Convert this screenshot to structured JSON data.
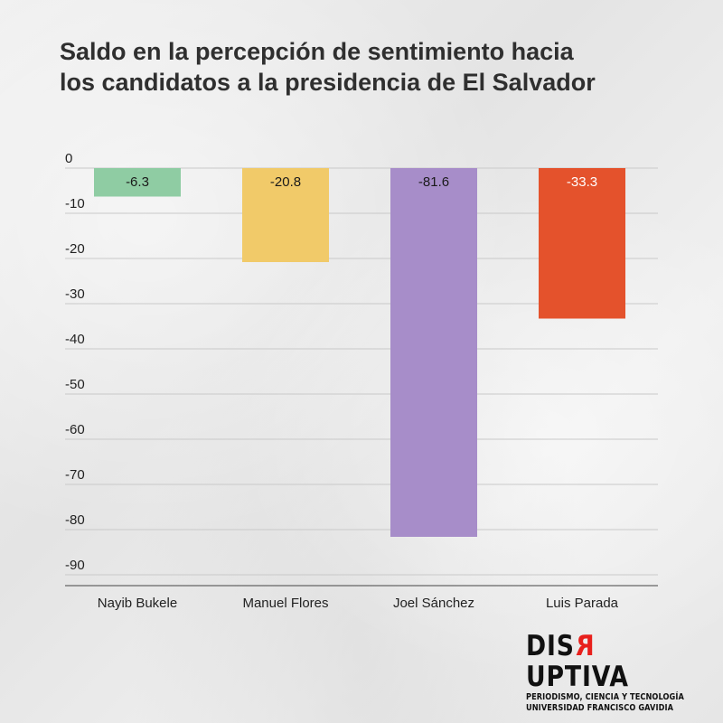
{
  "chart_data": {
    "type": "bar",
    "title_lines": [
      "Saldo en la percepción de sentimiento hacia",
      "los candidatos a la presidencia de El Salvador"
    ],
    "categories": [
      "Nayib Bukele",
      "Manuel Flores",
      "Joel Sánchez",
      "Luis Parada"
    ],
    "values": [
      -6.3,
      -20.8,
      -81.6,
      -33.3
    ],
    "value_labels": [
      "-6.3",
      "-20.8",
      "-81.6",
      "-33.3"
    ],
    "colors": [
      "#8fcca3",
      "#f1ca69",
      "#a78dc9",
      "#e4522c"
    ],
    "label_colors": [
      "#1a1a1a",
      "#1a1a1a",
      "#1a1a1a",
      "#ffffff"
    ],
    "yticks": [
      0,
      -10,
      -20,
      -30,
      -40,
      -50,
      -60,
      -70,
      -80,
      -90
    ],
    "ytick_labels": [
      "0",
      "-10",
      "-20",
      "-30",
      "-40",
      "-50",
      "-60",
      "-70",
      "-80",
      "-90"
    ],
    "ylim": [
      -90,
      0
    ],
    "xlabel": "",
    "ylabel": "",
    "grid": true,
    "legend": "none"
  },
  "branding": {
    "wordmark_pre": "DIS",
    "wordmark_mark": "R",
    "wordmark_post": "UPTIVA",
    "tagline": "PERIODISMO, CIENCIA Y TECNOLOGÍA",
    "institution": "UNIVERSIDAD FRANCISCO GAVIDIA",
    "accent_color": "#e8201c"
  }
}
